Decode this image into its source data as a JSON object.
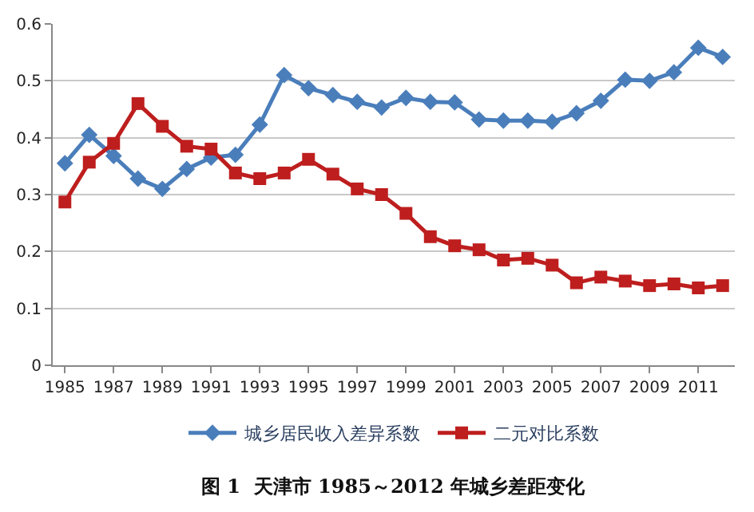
{
  "chart_data": {
    "type": "line",
    "x": [
      1985,
      1986,
      1987,
      1988,
      1989,
      1990,
      1991,
      1992,
      1993,
      1994,
      1995,
      1996,
      1997,
      1998,
      1999,
      2000,
      2001,
      2002,
      2003,
      2004,
      2005,
      2006,
      2007,
      2008,
      2009,
      2010,
      2011,
      2012
    ],
    "series": [
      {
        "name": "城乡居民收入差异系数",
        "color": "#4a7ebb",
        "marker": "diamond",
        "values": [
          0.355,
          0.405,
          0.368,
          0.328,
          0.31,
          0.345,
          0.365,
          0.37,
          0.423,
          0.51,
          0.487,
          0.475,
          0.463,
          0.453,
          0.47,
          0.463,
          0.462,
          0.432,
          0.43,
          0.43,
          0.428,
          0.443,
          0.465,
          0.502,
          0.5,
          0.515,
          0.558,
          0.542
        ]
      },
      {
        "name": "二元对比系数",
        "color": "#be1e1e",
        "marker": "square",
        "values": [
          0.287,
          0.357,
          0.39,
          0.46,
          0.42,
          0.385,
          0.38,
          0.338,
          0.328,
          0.338,
          0.362,
          0.336,
          0.31,
          0.3,
          0.267,
          0.226,
          0.21,
          0.203,
          0.185,
          0.188,
          0.176,
          0.145,
          0.155,
          0.148,
          0.14,
          0.143,
          0.136,
          0.14
        ]
      }
    ],
    "xlim": [
      1984.5,
      2012.5
    ],
    "xticks": [
      1985,
      1987,
      1989,
      1991,
      1993,
      1995,
      1997,
      1999,
      2001,
      2003,
      2005,
      2007,
      2009,
      2011
    ],
    "ylim": [
      0,
      0.6
    ],
    "yticks": [
      {
        "value": 0,
        "label": "0"
      },
      {
        "value": 0.1,
        "label": "0.1"
      },
      {
        "value": 0.2,
        "label": "0.2"
      },
      {
        "value": 0.3,
        "label": "0.3"
      },
      {
        "value": 0.4,
        "label": "0.4"
      },
      {
        "value": 0.5,
        "label": "0.5"
      },
      {
        "value": 0.6,
        "label": "0.6"
      }
    ],
    "grid": "y",
    "legend": "bottom",
    "annotations": [
      "图 1  天津市 1985～2012 年城乡差距变化"
    ]
  }
}
